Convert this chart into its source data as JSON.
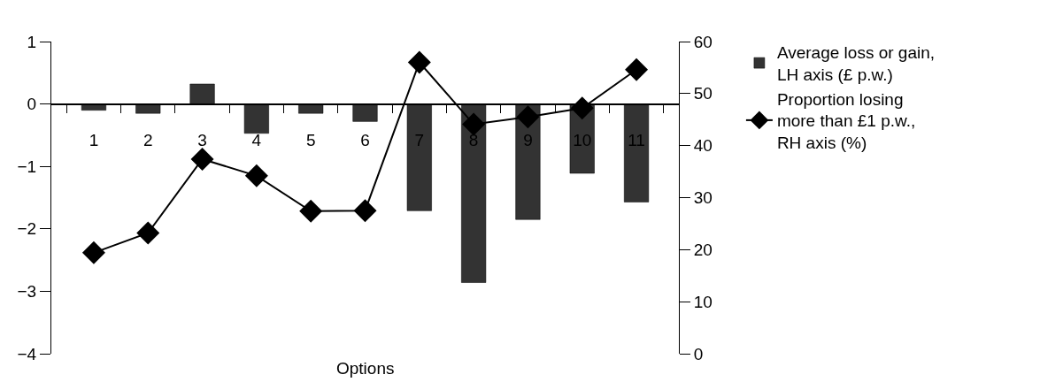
{
  "chart_data": {
    "type": "bar",
    "xlabel": "Options",
    "categories": [
      "1",
      "2",
      "3",
      "4",
      "5",
      "6",
      "7",
      "8",
      "9",
      "10",
      "11"
    ],
    "series": [
      {
        "name": "Average loss or gain, LH axis (£ p.w.)",
        "color": "#333333",
        "values": [
          -0.1,
          -0.15,
          0.32,
          -0.47,
          -0.15,
          -0.28,
          -1.71,
          -2.86,
          -1.85,
          -1.11,
          -1.57
        ]
      },
      {
        "name": "Proportion losing more than £1 p.w., RH axis (%)",
        "type": "line",
        "axis": "y2",
        "color": "#000000",
        "marker": "diamond",
        "values": [
          19.4,
          23.2,
          37.4,
          34.2,
          27.4,
          27.5,
          56.0,
          44.1,
          45.5,
          47.2,
          54.6
        ]
      }
    ],
    "ylim": [
      -4,
      1
    ],
    "yticks": [
      -4,
      -3,
      -2,
      -1,
      0,
      1
    ],
    "y2lim": [
      0,
      60
    ],
    "y2ticks": [
      0,
      10,
      20,
      30,
      40,
      50,
      60
    ],
    "legend": "right"
  }
}
